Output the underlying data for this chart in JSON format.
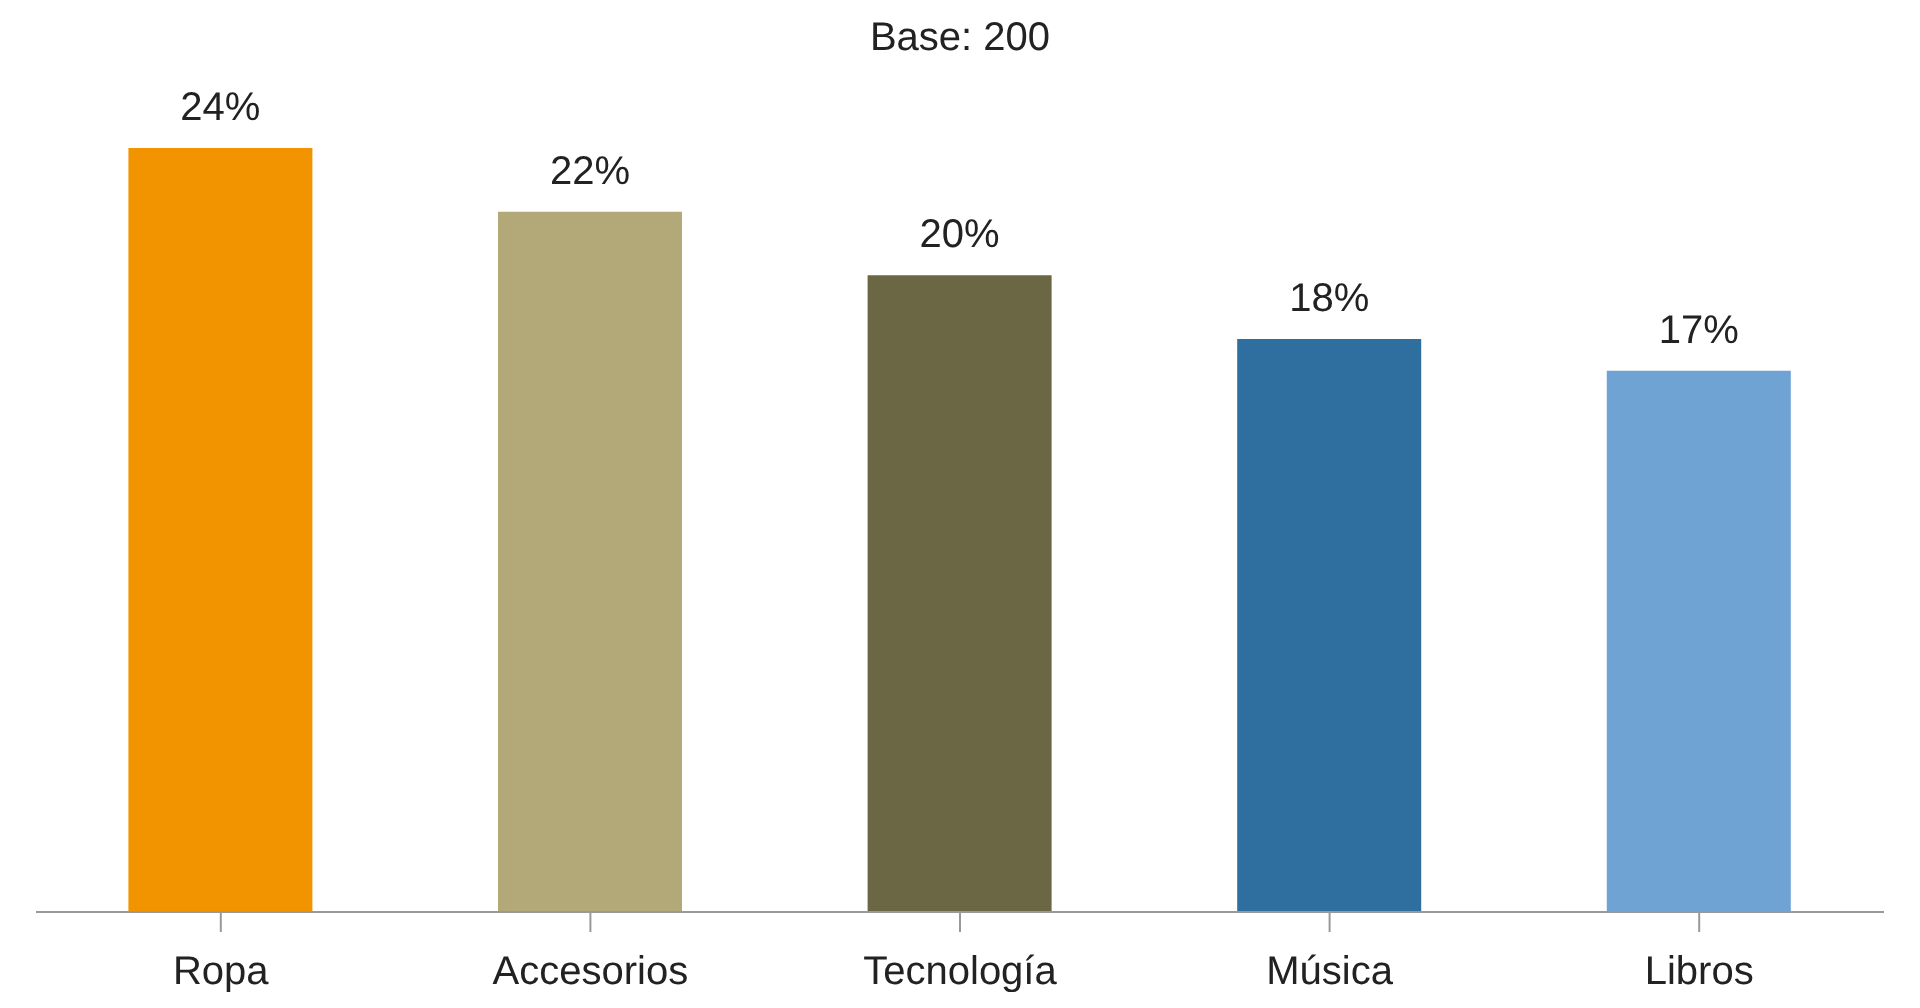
{
  "chart_data": {
    "type": "bar",
    "title": "Base: 200",
    "categories": [
      "Ropa",
      "Accesorios",
      "Tecnología",
      "Música",
      "Libros"
    ],
    "values": [
      24,
      22,
      20,
      18,
      17
    ],
    "colors": [
      "#f29400",
      "#b3a878",
      "#6b6644",
      "#2e6fa0",
      "#6fa3d3"
    ],
    "value_labels": [
      "24%",
      "22%",
      "20%",
      "18%",
      "17%"
    ],
    "grid": false
  }
}
